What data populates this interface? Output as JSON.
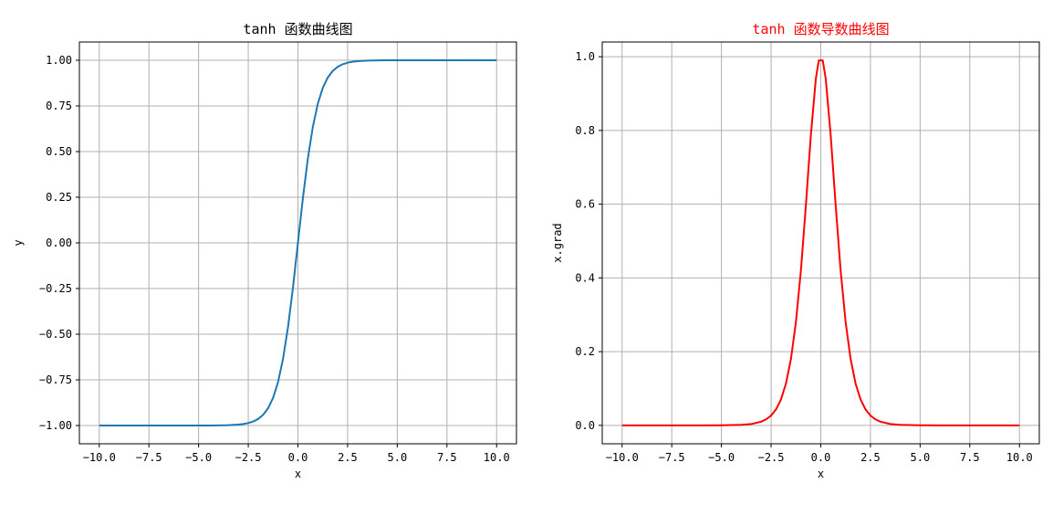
{
  "chart_data": [
    {
      "type": "line",
      "title": "tanh 函数曲线图",
      "title_color": "#000000",
      "xlabel": "x",
      "ylabel": "y",
      "xlim": [
        -11.0,
        11.0
      ],
      "ylim": [
        -1.1,
        1.1
      ],
      "xticks": [
        -10.0,
        -7.5,
        -5.0,
        -2.5,
        0.0,
        2.5,
        5.0,
        7.5,
        10.0
      ],
      "xtick_labels": [
        "−10.0",
        "−7.5",
        "−5.0",
        "−2.5",
        "0.0",
        "2.5",
        "5.0",
        "7.5",
        "10.0"
      ],
      "yticks": [
        1.0,
        0.75,
        0.5,
        0.25,
        0.0,
        -0.25,
        -0.5,
        -0.75,
        -1.0
      ],
      "ytick_labels": [
        "1.00",
        "0.75",
        "0.50",
        "0.25",
        "0.00",
        "−0.25",
        "−0.50",
        "−0.75",
        "−1.00"
      ],
      "grid": true,
      "series": [
        {
          "color": "#1f77b4",
          "x": [
            -10,
            -9,
            -8,
            -7,
            -6,
            -5,
            -4.5,
            -4,
            -3.5,
            -3,
            -2.75,
            -2.5,
            -2.25,
            -2,
            -1.75,
            -1.5,
            -1.25,
            -1,
            -0.75,
            -0.5,
            -0.25,
            0,
            0.25,
            0.5,
            0.75,
            1,
            1.25,
            1.5,
            1.75,
            2,
            2.25,
            2.5,
            2.75,
            3,
            3.5,
            4,
            4.5,
            5,
            6,
            7,
            8,
            9,
            10
          ],
          "y": [
            -1.0,
            -1.0,
            -1.0,
            -1.0,
            -1.0,
            -0.9999,
            -0.9998,
            -0.9993,
            -0.9982,
            -0.9951,
            -0.9918,
            -0.9866,
            -0.978,
            -0.964,
            -0.9414,
            -0.9051,
            -0.8483,
            -0.7616,
            -0.6351,
            -0.4621,
            -0.2449,
            0.0,
            0.2449,
            0.4621,
            0.6351,
            0.7616,
            0.8483,
            0.9051,
            0.9414,
            0.964,
            0.978,
            0.9866,
            0.9918,
            0.9951,
            0.9982,
            0.9993,
            0.9998,
            0.9999,
            1.0,
            1.0,
            1.0,
            1.0,
            1.0
          ]
        }
      ]
    },
    {
      "type": "line",
      "title": "tanh 函数导数曲线图",
      "title_color": "#ff0000",
      "xlabel": "x",
      "ylabel": "x.grad",
      "xlim": [
        -11.0,
        11.0
      ],
      "ylim": [
        -0.05,
        1.04
      ],
      "xticks": [
        -10.0,
        -7.5,
        -5.0,
        -2.5,
        0.0,
        2.5,
        5.0,
        7.5,
        10.0
      ],
      "xtick_labels": [
        "−10.0",
        "−7.5",
        "−5.0",
        "−2.5",
        "0.0",
        "2.5",
        "5.0",
        "7.5",
        "10.0"
      ],
      "yticks": [
        1.0,
        0.8,
        0.6,
        0.4,
        0.2,
        0.0
      ],
      "ytick_labels": [
        "1.0",
        "0.8",
        "0.6",
        "0.4",
        "0.2",
        "0.0"
      ],
      "grid": true,
      "series": [
        {
          "color": "#ff0000",
          "x": [
            -10,
            -8,
            -6,
            -5,
            -4,
            -3.5,
            -3,
            -2.75,
            -2.5,
            -2.25,
            -2,
            -1.75,
            -1.5,
            -1.25,
            -1,
            -0.75,
            -0.5,
            -0.25,
            -0.1,
            0.1,
            0.25,
            0.5,
            0.75,
            1,
            1.25,
            1.5,
            1.75,
            2,
            2.25,
            2.5,
            2.75,
            3,
            3.5,
            4,
            5,
            6,
            8,
            10
          ],
          "y": [
            0.0,
            0.0,
            0.0,
            0.0002,
            0.0013,
            0.0036,
            0.0099,
            0.0163,
            0.0266,
            0.0435,
            0.0707,
            0.1138,
            0.1807,
            0.2805,
            0.42,
            0.5966,
            0.7864,
            0.94,
            0.99,
            0.99,
            0.94,
            0.7864,
            0.5966,
            0.42,
            0.2805,
            0.1807,
            0.1138,
            0.0707,
            0.0435,
            0.0266,
            0.0163,
            0.0099,
            0.0036,
            0.0013,
            0.0002,
            0.0,
            0.0,
            0.0
          ]
        }
      ]
    }
  ]
}
